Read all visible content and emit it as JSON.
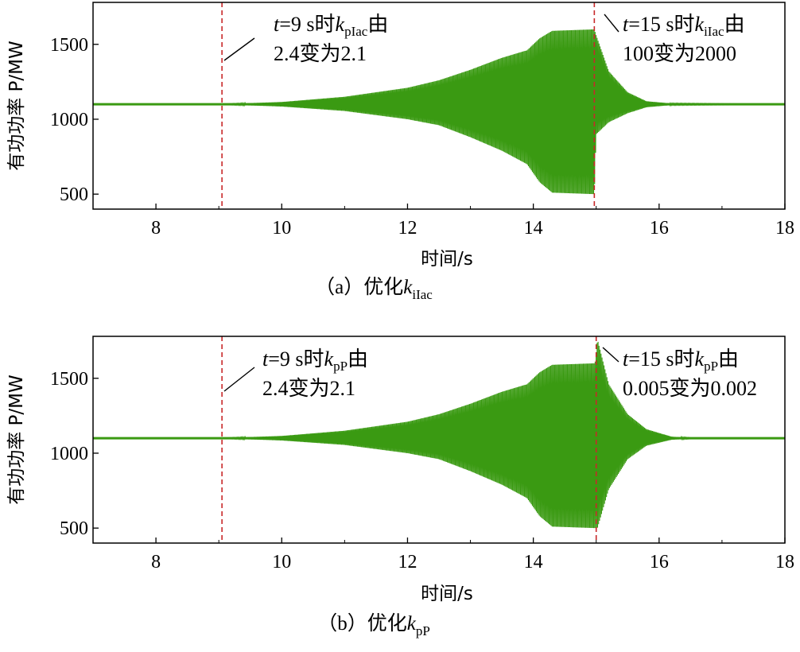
{
  "colors": {
    "signal": "#3a9a12",
    "marker": "#c8282a",
    "axis": "#000000"
  },
  "chart_data": [
    {
      "type": "line",
      "id": "a",
      "caption": {
        "prefix": "（a）优化",
        "var": "k",
        "sub": "iIac"
      },
      "xlabel": "时间/s",
      "ylabel": "有功功率 P/MW",
      "xlim": [
        7,
        18
      ],
      "ylim": [
        400,
        1780
      ],
      "xticks": [
        8,
        10,
        12,
        14,
        16,
        18
      ],
      "yticks": [
        500,
        1000,
        1500
      ],
      "steady_value": 1100,
      "events": [
        9.05,
        14.97
      ],
      "annotations": [
        {
          "t_text": "t",
          "rest1": "=9 s时",
          "var": "k",
          "sub": "pIac",
          "end": "由",
          "line2": "2.4变为2.1"
        },
        {
          "t_text": "t",
          "rest1": "=15 s时",
          "var": "k",
          "sub": "iIac",
          "end": "由",
          "line2": "100变为2000"
        }
      ],
      "envelope": {
        "description_points": [
          [
            7.0,
            1100,
            1100
          ],
          [
            9.0,
            1100,
            1100
          ],
          [
            10.0,
            1085,
            1115
          ],
          [
            11.0,
            1055,
            1150
          ],
          [
            12.0,
            1000,
            1210
          ],
          [
            12.5,
            960,
            1260
          ],
          [
            13.0,
            880,
            1330
          ],
          [
            13.5,
            790,
            1410
          ],
          [
            13.9,
            700,
            1460
          ],
          [
            14.1,
            580,
            1540
          ],
          [
            14.3,
            510,
            1590
          ],
          [
            14.97,
            500,
            1600
          ],
          [
            15.0,
            900,
            1560
          ],
          [
            15.2,
            980,
            1320
          ],
          [
            15.5,
            1040,
            1180
          ],
          [
            15.8,
            1080,
            1120
          ],
          [
            16.2,
            1095,
            1105
          ],
          [
            18.0,
            1100,
            1100
          ]
        ]
      }
    },
    {
      "type": "line",
      "id": "b",
      "caption": {
        "prefix": "（b）优化",
        "var": "k",
        "sub": "pP"
      },
      "xlabel": "时间/s",
      "ylabel": "有功功率 P/MW",
      "xlim": [
        7,
        18
      ],
      "ylim": [
        400,
        1780
      ],
      "xticks": [
        8,
        10,
        12,
        14,
        16,
        18
      ],
      "yticks": [
        500,
        1000,
        1500
      ],
      "steady_value": 1100,
      "events": [
        9.05,
        15.0
      ],
      "annotations": [
        {
          "t_text": "t",
          "rest1": "=9 s时",
          "var": "k",
          "sub": "pP",
          "end": "由",
          "line2": "2.4变为2.1"
        },
        {
          "t_text": "t",
          "rest1": "=15 s时",
          "var": "k",
          "sub": "pP",
          "end": "由",
          "line2": "0.005变为0.002"
        }
      ],
      "envelope": {
        "description_points": [
          [
            7.0,
            1100,
            1100
          ],
          [
            9.0,
            1100,
            1100
          ],
          [
            10.0,
            1085,
            1115
          ],
          [
            11.0,
            1055,
            1150
          ],
          [
            12.0,
            1000,
            1210
          ],
          [
            12.5,
            960,
            1260
          ],
          [
            13.0,
            880,
            1330
          ],
          [
            13.5,
            790,
            1410
          ],
          [
            13.9,
            700,
            1460
          ],
          [
            14.1,
            580,
            1540
          ],
          [
            14.3,
            510,
            1590
          ],
          [
            14.98,
            500,
            1600
          ],
          [
            15.02,
            500,
            1760
          ],
          [
            15.2,
            760,
            1460
          ],
          [
            15.5,
            960,
            1260
          ],
          [
            15.8,
            1050,
            1160
          ],
          [
            16.2,
            1090,
            1110
          ],
          [
            16.6,
            1100,
            1100
          ],
          [
            18.0,
            1100,
            1100
          ]
        ]
      }
    }
  ]
}
